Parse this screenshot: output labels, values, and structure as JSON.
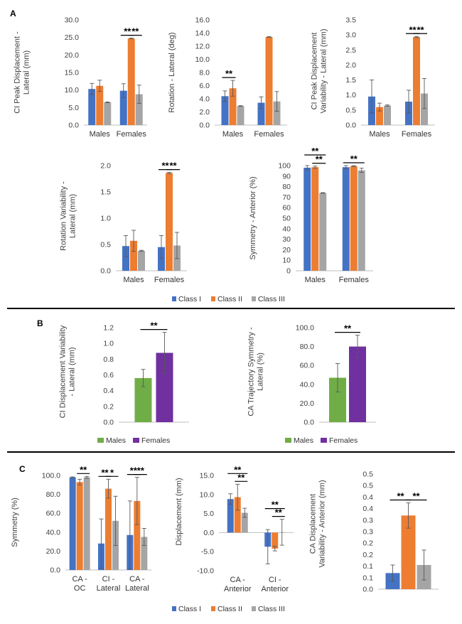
{
  "panel_labels": {
    "a": "A",
    "b": "B",
    "c": "C"
  },
  "legend_class": [
    "Class I",
    "Class II",
    "Class III"
  ],
  "legend_sex": [
    "Males",
    "Females"
  ],
  "colors": {
    "class1": "#4472C4",
    "class2": "#ED7D31",
    "class3": "#A5A5A5",
    "males": "#70AD47",
    "females": "#7030A0",
    "axis": "#BFBFBF",
    "text": "#404040",
    "divider": "#000000"
  },
  "chart_data": [
    {
      "id": "a1",
      "type": "bar",
      "ylabel": "CI Peak Displacement -\nLateral (mm)",
      "ylim": [
        0,
        30
      ],
      "ticks": [
        0,
        5,
        10,
        15,
        20,
        25,
        30
      ],
      "decimals": 1,
      "categories": [
        "Males",
        "Females"
      ],
      "series": [
        {
          "name": "Class I",
          "values": [
            10.3,
            9.8
          ],
          "err": [
            1.6,
            2.0
          ]
        },
        {
          "name": "Class II",
          "values": [
            11.2,
            24.7
          ],
          "err": [
            1.6,
            0.1
          ]
        },
        {
          "name": "Class III",
          "values": [
            6.5,
            8.8
          ],
          "err": [
            0.1,
            2.6
          ]
        }
      ],
      "sig": [
        {
          "label": "**",
          "cat": 1,
          "from": 0,
          "to": 1,
          "level": 0
        },
        {
          "label": "**",
          "cat": 1,
          "from": 1,
          "to": 2,
          "level": 0
        }
      ]
    },
    {
      "id": "a2",
      "type": "bar",
      "ylabel": "Rotation - Lateral (deg)",
      "ylim": [
        0,
        16
      ],
      "ticks": [
        0,
        2,
        4,
        6,
        8,
        10,
        12,
        14,
        16
      ],
      "decimals": 1,
      "categories": [
        "Males",
        "Females"
      ],
      "series": [
        {
          "name": "Class I",
          "values": [
            4.4,
            3.4
          ],
          "err": [
            0.8,
            0.9
          ]
        },
        {
          "name": "Class II",
          "values": [
            5.6,
            13.4
          ],
          "err": [
            1.2,
            0.05
          ]
        },
        {
          "name": "Class III",
          "values": [
            2.9,
            3.6
          ],
          "err": [
            0.05,
            1.5
          ]
        }
      ],
      "sig": [
        {
          "label": "**",
          "cat": 0,
          "from": 0,
          "to": 1,
          "level": 0
        }
      ]
    },
    {
      "id": "a3",
      "type": "bar",
      "ylabel": "CI Peak Displacement\nVariability - Lateral (mm)",
      "ylim": [
        0,
        3.5
      ],
      "ticks": [
        0,
        0.5,
        1,
        1.5,
        2,
        2.5,
        3,
        3.5
      ],
      "decimals": 1,
      "categories": [
        "Males",
        "Females"
      ],
      "series": [
        {
          "name": "Class I",
          "values": [
            0.95,
            0.78
          ],
          "err": [
            0.55,
            0.38
          ]
        },
        {
          "name": "Class II",
          "values": [
            0.6,
            2.93
          ],
          "err": [
            0.13,
            0.02
          ]
        },
        {
          "name": "Class III",
          "values": [
            0.65,
            1.05
          ],
          "err": [
            0.02,
            0.5
          ]
        }
      ],
      "sig": [
        {
          "label": "**",
          "cat": 1,
          "from": 0,
          "to": 1,
          "level": 0
        },
        {
          "label": "**",
          "cat": 1,
          "from": 1,
          "to": 2,
          "level": 0
        }
      ]
    },
    {
      "id": "a4",
      "type": "bar",
      "ylabel": "Rotation Variability -\nLateral (mm)",
      "ylim": [
        0,
        2
      ],
      "ticks": [
        0,
        0.5,
        1,
        1.5,
        2
      ],
      "decimals": 1,
      "categories": [
        "Males",
        "Females"
      ],
      "series": [
        {
          "name": "Class I",
          "values": [
            0.47,
            0.45
          ],
          "err": [
            0.2,
            0.22
          ]
        },
        {
          "name": "Class II",
          "values": [
            0.57,
            1.86
          ],
          "err": [
            0.2,
            0.01
          ]
        },
        {
          "name": "Class III",
          "values": [
            0.38,
            0.48
          ],
          "err": [
            0.01,
            0.25
          ]
        }
      ],
      "sig": [
        {
          "label": "**",
          "cat": 1,
          "from": 0,
          "to": 1,
          "level": 0
        },
        {
          "label": "**",
          "cat": 1,
          "from": 1,
          "to": 2,
          "level": 0
        }
      ]
    },
    {
      "id": "a5",
      "type": "bar",
      "ylabel": "Symmetry - Anterior (%)",
      "ylim": [
        0,
        100
      ],
      "ticks": [
        0,
        10,
        20,
        30,
        40,
        50,
        60,
        70,
        80,
        90,
        100
      ],
      "decimals": 0,
      "categories": [
        "Males",
        "Females"
      ],
      "series": [
        {
          "name": "Class I",
          "values": [
            98,
            98.5
          ],
          "err": [
            2,
            1.5
          ]
        },
        {
          "name": "Class II",
          "values": [
            98.5,
            99.5
          ],
          "err": [
            1,
            0.5
          ]
        },
        {
          "name": "Class III",
          "values": [
            74,
            95.5
          ],
          "err": [
            0.3,
            2
          ]
        }
      ],
      "sig": [
        {
          "label": "**",
          "cat": 0,
          "from": 0,
          "to": 2,
          "level": 1
        },
        {
          "label": "**",
          "cat": 0,
          "from": 1,
          "to": 2,
          "level": 0
        },
        {
          "label": "**",
          "cat": 1,
          "from": 0,
          "to": 2,
          "level": 0
        }
      ]
    },
    {
      "id": "b1",
      "type": "bar",
      "ylabel": "CI Displacement Variability\n- Lateral (mm)",
      "ylim": [
        0,
        1.2
      ],
      "ticks": [
        0,
        0.2,
        0.4,
        0.6,
        0.8,
        1,
        1.2
      ],
      "decimals": 1,
      "categories": [
        ""
      ],
      "series": [
        {
          "name": "Males",
          "values": [
            0.56
          ],
          "err": [
            0.11
          ]
        },
        {
          "name": "Females",
          "values": [
            0.88
          ],
          "err": [
            0.26
          ]
        }
      ],
      "sig": [
        {
          "label": "**",
          "cat": 0,
          "from": 0,
          "to": 1,
          "level": 0
        }
      ]
    },
    {
      "id": "b2",
      "type": "bar",
      "ylabel": "CA Trajectory Symmetry -\nLateral (%)",
      "ylim": [
        0,
        100
      ],
      "ticks": [
        0,
        20,
        40,
        60,
        80,
        100
      ],
      "decimals": 1,
      "categories": [
        ""
      ],
      "series": [
        {
          "name": "Males",
          "values": [
            47
          ],
          "err": [
            15
          ]
        },
        {
          "name": "Females",
          "values": [
            80
          ],
          "err": [
            12
          ]
        }
      ],
      "sig": [
        {
          "label": "**",
          "cat": 0,
          "from": 0,
          "to": 1,
          "level": 0
        }
      ]
    },
    {
      "id": "c1",
      "type": "bar",
      "ylabel": "Symmetry (%)",
      "ylim": [
        0,
        100
      ],
      "ticks": [
        0,
        20,
        40,
        60,
        80,
        100
      ],
      "decimals": 1,
      "categories": [
        "CA -\nOC",
        "CI -\nLateral",
        "CA -\nLateral"
      ],
      "series": [
        {
          "name": "Class I",
          "values": [
            98,
            28,
            37
          ],
          "err": [
            0.5,
            26,
            36
          ]
        },
        {
          "name": "Class II",
          "values": [
            93,
            86,
            73
          ],
          "err": [
            3,
            10,
            25
          ]
        },
        {
          "name": "Class III",
          "values": [
            98,
            52,
            35
          ],
          "err": [
            1,
            26,
            9
          ]
        }
      ],
      "sig": [
        {
          "label": "**",
          "cat": 0,
          "from": 1,
          "to": 2,
          "level": 0
        },
        {
          "label": "**",
          "cat": 1,
          "from": 0,
          "to": 1,
          "level": 0
        },
        {
          "label": "*",
          "cat": 1,
          "from": 1,
          "to": 2,
          "level": 0
        },
        {
          "label": "**",
          "cat": 2,
          "from": 0,
          "to": 1,
          "level": 0
        },
        {
          "label": "**",
          "cat": 2,
          "from": 1,
          "to": 2,
          "level": 0
        }
      ]
    },
    {
      "id": "c2",
      "type": "bar",
      "ylabel": "Displacement (mm)",
      "ylim": [
        -10,
        15
      ],
      "ticks": [
        -10,
        -5,
        0,
        5,
        10,
        15
      ],
      "decimals": 1,
      "categories": [
        "CA -\nAnterior",
        "CI -\nAnterior"
      ],
      "series": [
        {
          "name": "Class I",
          "values": [
            8.8,
            -3.7
          ],
          "err": [
            1.4,
            4.5
          ]
        },
        {
          "name": "Class II",
          "values": [
            9.3,
            -4.2
          ],
          "err": [
            3.4,
            0.6
          ]
        },
        {
          "name": "Class III",
          "values": [
            5.2,
            0.1
          ],
          "err": [
            1.2,
            3.4
          ]
        }
      ],
      "sig": [
        {
          "label": "**",
          "cat": 0,
          "from": 0,
          "to": 2,
          "level": 1
        },
        {
          "label": "**",
          "cat": 0,
          "from": 1,
          "to": 2,
          "level": 0
        },
        {
          "label": "**",
          "cat": 1,
          "from": 0,
          "to": 2,
          "level": 1
        },
        {
          "label": "**",
          "cat": 1,
          "from": 1,
          "to": 2,
          "level": 0
        }
      ]
    },
    {
      "id": "c3",
      "type": "bar",
      "ylabel": "CA Displacement\nVariability - Anterior (mm)",
      "ylim": [
        0,
        0.5
      ],
      "ticks": [
        0,
        0.05,
        0.1,
        0.15,
        0.2,
        0.25,
        0.3,
        0.35,
        0.4,
        0.45,
        0.5
      ],
      "tick_labels": [
        "0.0",
        "0.1",
        "0.1",
        "0.2",
        "0.2",
        "0.3",
        "0.3",
        "0.4",
        "0.4",
        "0.5",
        "0.5"
      ],
      "decimals": 1,
      "categories": [
        ""
      ],
      "series": [
        {
          "name": "Class I",
          "values": [
            0.07
          ],
          "err": [
            0.035
          ]
        },
        {
          "name": "Class II",
          "values": [
            0.32
          ],
          "err": [
            0.055
          ]
        },
        {
          "name": "Class III",
          "values": [
            0.105
          ],
          "err": [
            0.065
          ]
        }
      ],
      "sig": [
        {
          "label": "**",
          "cat": 0,
          "from": 0,
          "to": 1,
          "level": 0
        },
        {
          "label": "**",
          "cat": 0,
          "from": 1,
          "to": 2,
          "level": 0
        }
      ]
    }
  ]
}
